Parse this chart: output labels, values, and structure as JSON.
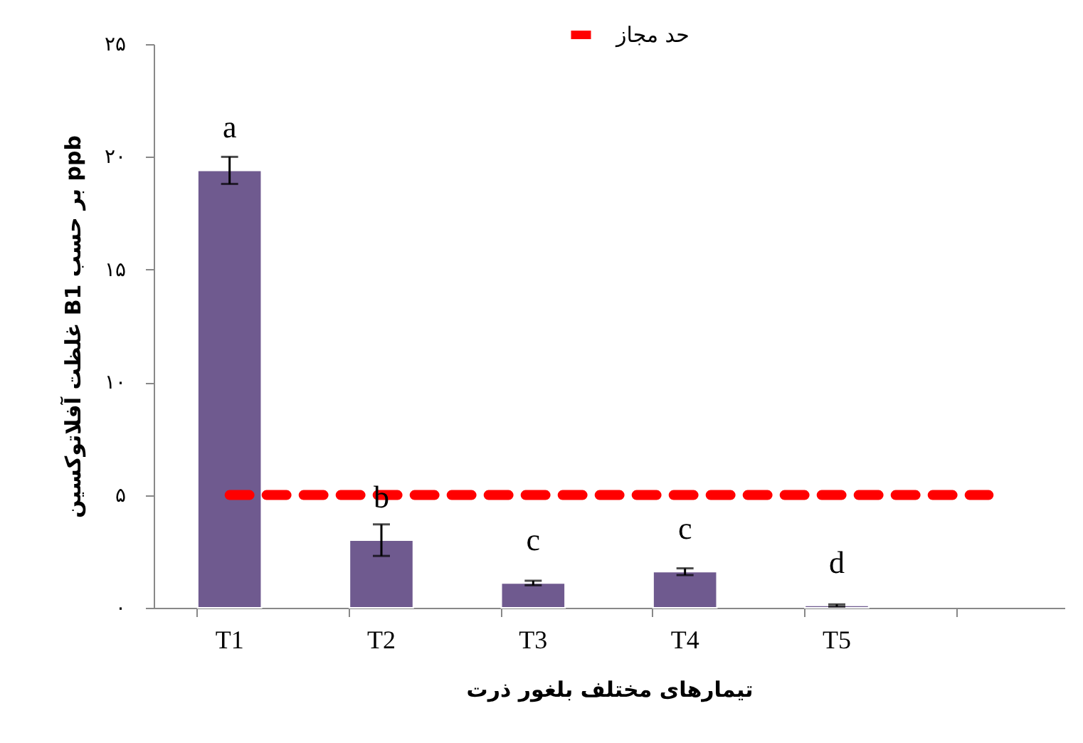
{
  "chart_data": {
    "type": "bar",
    "xlabel": "تیمارهای مختلف بلغور ذرت",
    "ylabel": "غلظت  آفلاتوکسین B1 بر حسب ppb",
    "categories": [
      "T1",
      "T2",
      "T3",
      "T4",
      "T5",
      null
    ],
    "series": [
      {
        "color": "#6f5a8f",
        "values": [
          19.4,
          3.0,
          1.1,
          1.6,
          0.1,
          null
        ],
        "errors": [
          0.6,
          0.7,
          0.1,
          0.15,
          0.05,
          null
        ]
      },
      {
        "type": "line",
        "name": "حد مجاز",
        "color": "#ff0000",
        "line_style": "dashed",
        "values": [
          5,
          5,
          5,
          5,
          5,
          5
        ]
      }
    ],
    "ylim": [
      0,
      25
    ],
    "yticks": [
      {
        "value": 0,
        "label": "۰"
      },
      {
        "value": 5,
        "label": "۵"
      },
      {
        "value": 10,
        "label": "۱۰"
      },
      {
        "value": 15,
        "label": "۱۵"
      },
      {
        "value": 20,
        "label": "۲۰"
      },
      {
        "value": 25,
        "label": "۲۵"
      }
    ],
    "annotations": [
      {
        "text": "a",
        "x": "T1",
        "y": 19.4
      },
      {
        "text": "b",
        "x": "T2",
        "y": 3.0
      },
      {
        "text": "c",
        "x": "T3",
        "y": 1.1
      },
      {
        "text": "c",
        "x": "T4",
        "y": 1.6
      },
      {
        "text": "d",
        "x": "T5",
        "y": 0.1
      }
    ],
    "legend": "top",
    "grid": false
  }
}
